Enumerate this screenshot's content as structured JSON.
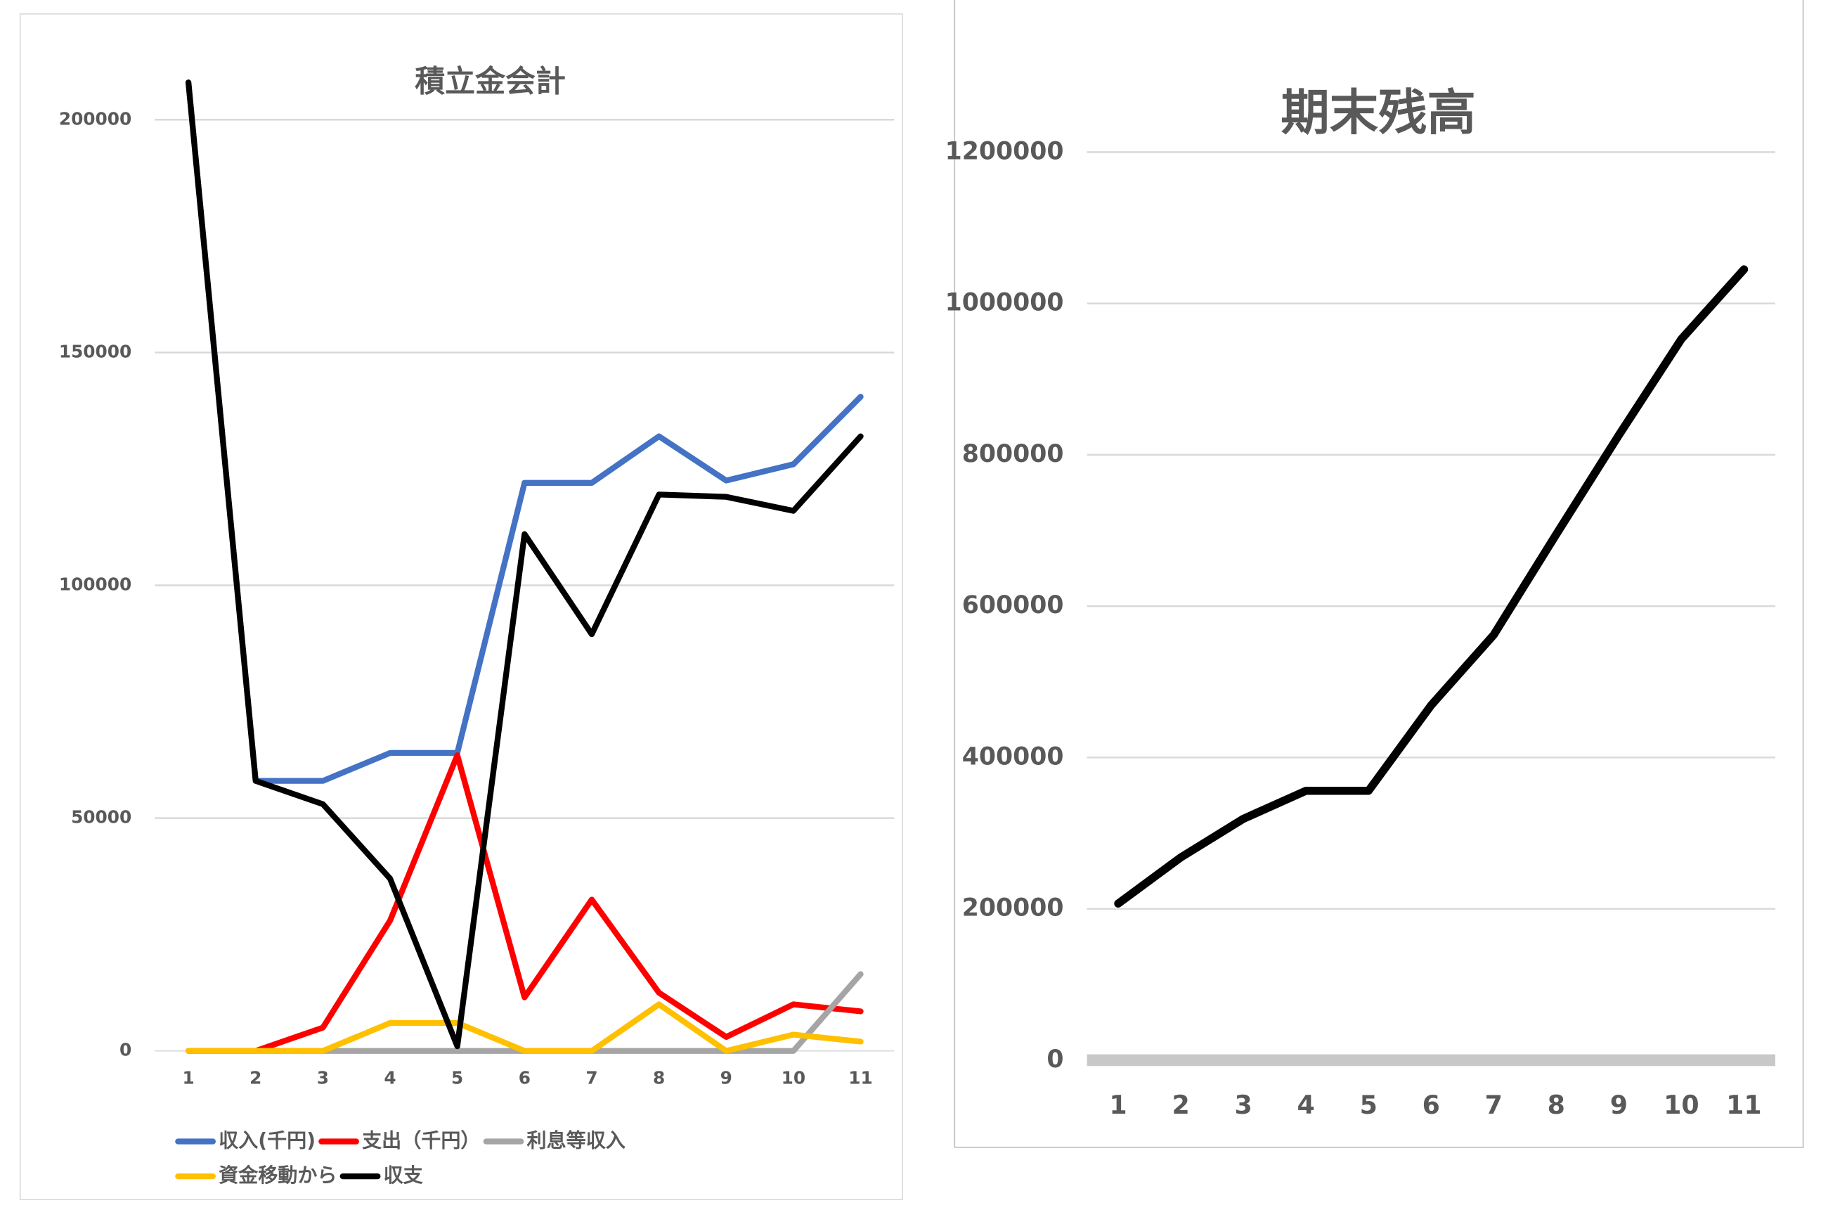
{
  "chart_data": [
    {
      "type": "line",
      "title": "積立金会計",
      "categories": [
        "1",
        "2",
        "3",
        "4",
        "5",
        "6",
        "7",
        "8",
        "9",
        "10",
        "11"
      ],
      "series": [
        {
          "name": "収入(千円)",
          "color": "#4472c4",
          "values": [
            208000,
            58000,
            58000,
            64000,
            64000,
            122000,
            122000,
            132000,
            122500,
            126000,
            140500
          ]
        },
        {
          "name": "支出（千円）",
          "color": "#ff0000",
          "values": [
            0,
            0,
            5000,
            28000,
            63500,
            11500,
            32500,
            12500,
            3000,
            10000,
            8500
          ]
        },
        {
          "name": "利息等収入",
          "color": "#a5a5a5",
          "values": [
            0,
            0,
            0,
            0,
            0,
            0,
            0,
            0,
            0,
            0,
            16500
          ]
        },
        {
          "name": "資金移動から",
          "color": "#ffc000",
          "values": [
            0,
            0,
            0,
            6000,
            6000,
            0,
            0,
            10000,
            0,
            3500,
            2000
          ]
        },
        {
          "name": "収支",
          "color": "#000000",
          "values": [
            208000,
            58000,
            53000,
            37000,
            1000,
            111000,
            89500,
            119500,
            119000,
            116000,
            132000
          ]
        }
      ],
      "ylim": [
        0,
        210000
      ],
      "yticks": [
        0,
        50000,
        100000,
        150000,
        200000
      ],
      "grid": true,
      "legend": "bottom"
    },
    {
      "type": "line",
      "title": "期末残高",
      "categories": [
        "1",
        "2",
        "3",
        "4",
        "5",
        "6",
        "7",
        "8",
        "9",
        "10",
        "11"
      ],
      "series": [
        {
          "color": "#000000",
          "values": [
            207000,
            268000,
            319000,
            356000,
            356000,
            469000,
            562000,
            695000,
            826000,
            953000,
            1045000
          ]
        }
      ],
      "ylim": [
        0,
        1200000
      ],
      "yticks": [
        0,
        200000,
        400000,
        600000,
        800000,
        1000000,
        1200000
      ],
      "grid": true
    }
  ]
}
